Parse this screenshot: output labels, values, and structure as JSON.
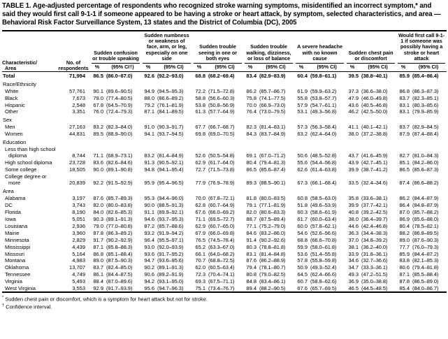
{
  "title": "TABLE 1. Age-adjusted percentage of respondents who recognized stroke warning symptoms, misidentified an incorrect symptom,* and said they would first call 9-1-1 if someone appeared to be having a stroke or heart attack, by symptom, selected characteristics, and area — Behavioral Risk Factor Surveillance System, 13 states and the District of Columbia (DC), 2005",
  "table": {
    "char_header_line1": "Characteristic/",
    "char_header_line2": "Area",
    "respondents_header": "No. of respondents",
    "groups": [
      {
        "title": "Sudden confusion or trouble speaking",
        "pct": "%",
        "ci": "(95% CI†)"
      },
      {
        "title": "Sudden numbness or weakness of face, arm, or leg, especially on one side",
        "pct": "%",
        "ci": "(95% CI)"
      },
      {
        "title": "Sudden trouble seeing in one or both eyes",
        "pct": "%",
        "ci": "(95% CI)"
      },
      {
        "title": "Sudden trouble walking, dizziness, or loss of balance",
        "pct": "%",
        "ci": "(95% CI)"
      },
      {
        "title": "A severe headache with no known cause",
        "pct": "%",
        "ci": "(95% CI)"
      },
      {
        "title": "Sudden chest pain or discomfort",
        "pct": "%",
        "ci": "(95% CI)"
      },
      {
        "title": "Would first call 9-1-1 if someone was possibly having a stroke or heart attack",
        "pct": "%",
        "ci": "(95% CI)"
      }
    ],
    "rows": [
      {
        "kind": "data",
        "label": "Total",
        "bold": true,
        "indent": false,
        "n": "71,994",
        "cells": [
          "86.5",
          "(86.0–87.0)",
          "92.6",
          "(92.2–93.0)",
          "68.8",
          "(68.2–69.4)",
          "83.4",
          "(82.9–83.9)",
          "60.4",
          "(59.8–61.1)",
          "39.5",
          "(38.8–40.1)",
          "85.9",
          "(85.4–86.4)"
        ]
      },
      {
        "kind": "section",
        "label": "Race/Ethnicity"
      },
      {
        "kind": "data",
        "label": "White",
        "indent": true,
        "n": "57,761",
        "cells": [
          "90.1",
          "(89.6–90.5)",
          "94.9",
          "(94.5–95.3)",
          "72.2",
          "(71.5–72.8)",
          "86.2",
          "(85.7–86.7)",
          "61.9",
          "(59.9–63.2)",
          "37.3",
          "(36.6–38.0)",
          "86.8",
          "(86.3–87.3)"
        ]
      },
      {
        "kind": "data",
        "label": "Black",
        "indent": true,
        "n": "7,673",
        "cells": [
          "79.0",
          "(77.4–80.5)",
          "88.0",
          "(86.6–89.2)",
          "58.8",
          "(56.6–60.3)",
          "75.8",
          "(74.1–77.5)",
          "55.8",
          "(53.8–57.7)",
          "47.9",
          "(46.0–49.8)",
          "83.7",
          "(82.3–85.1)"
        ]
      },
      {
        "kind": "data",
        "label": "Hispanic",
        "indent": true,
        "n": "2,548",
        "cells": [
          "67.8",
          "(64.5–70.9)",
          "79.2",
          "(76.1–81.9)",
          "53.8",
          "(50.8–56.9)",
          "70.0",
          "(66.9–73.0)",
          "57.9",
          "(54.7–61.1)",
          "43.6",
          "(40.5–46.8)",
          "83.1",
          "(80.3–85.6)"
        ]
      },
      {
        "kind": "data",
        "label": "Other",
        "indent": true,
        "n": "3,351",
        "cells": [
          "76.0",
          "(72.4–79.3)",
          "87.1",
          "(84.1–89.5)",
          "61.3",
          "(57.7–64.9)",
          "76.4",
          "(73.0–79.5)",
          "53.1",
          "(49.3–56.8)",
          "46.2",
          "(42.5–50.0)",
          "83.1",
          "(79.9–85.9)"
        ]
      },
      {
        "kind": "section",
        "label": "Sex"
      },
      {
        "kind": "data",
        "label": "Men",
        "indent": true,
        "n": "27,163",
        "cells": [
          "83.2",
          "(82.3–84.0)",
          "91.0",
          "(90.3–91.7)",
          "67.7",
          "(66.7–68.7)",
          "82.3",
          "(81.4–83.1)",
          "57.3",
          "(56.3–58.4)",
          "41.1",
          "(40.1–42.1)",
          "83.7",
          "(82.9–84.5)"
        ]
      },
      {
        "kind": "data",
        "label": "Women",
        "indent": true,
        "n": "44,831",
        "cells": [
          "89.5",
          "(88.9–90.0)",
          "94.1",
          "(93.7–94.5)",
          "69.8",
          "(69.0–70.5)",
          "84.3",
          "(83.7–84.9)",
          "63.2",
          "(62.4–64.0)",
          "38.0",
          "(37.2–38.8)",
          "87.9",
          "(87.4–88.4)"
        ]
      },
      {
        "kind": "section",
        "label": "Education"
      },
      {
        "kind": "data",
        "label": "Less than high school diploma",
        "indent": true,
        "n": "8,744",
        "cells": [
          "71.1",
          "(68.9–73.1)",
          "83.2",
          "(81.4–84.9)",
          "52.6",
          "(50.5–54.8)",
          "69.1",
          "(67.0–71.2)",
          "50.6",
          "(48.5–52.8)",
          "43.7",
          "(41.6–45.9)",
          "82.7",
          "(81.0–84.3)"
        ]
      },
      {
        "kind": "data",
        "label": "High school diploma",
        "indent": true,
        "n": "23,728",
        "cells": [
          "83.6",
          "(82.6–84.6)",
          "91.3",
          "(90.5–92.1)",
          "62.9",
          "(61.7–64.0)",
          "80.4",
          "(79.4–81.3)",
          "55.6",
          "(54.4–56.8)",
          "43.9",
          "(42.7–45.1)",
          "85.1",
          "(84.2–86.0)"
        ]
      },
      {
        "kind": "data",
        "label": "Some college",
        "indent": true,
        "n": "18,505",
        "cells": [
          "90.0",
          "(89.1–90.8)",
          "94.8",
          "(94.1–95.4)",
          "72.7",
          "(71.5–73.8)",
          "86.5",
          "(85.6–87.4)",
          "62.6",
          "(61.4–63.8)",
          "39.9",
          "(38.7–41.2)",
          "86.5",
          "(85.6–87.3)"
        ]
      },
      {
        "kind": "data",
        "label": "College degree or more",
        "indent": true,
        "n": "20,839",
        "cells": [
          "92.2",
          "(91.5–92.9)",
          "95.9",
          "(95.4–96.5)",
          "77.9",
          "(76.9–78.9)",
          "89.3",
          "(88.5–90.1)",
          "67.3",
          "(66.1–68.4)",
          "33.5",
          "(32.4–34.6)",
          "87.4",
          "(86.6–88.2)"
        ]
      },
      {
        "kind": "section",
        "label": "Area"
      },
      {
        "kind": "data",
        "label": "Alabama",
        "indent": true,
        "n": "3,197",
        "cells": [
          "87.6",
          "(85.7–89.3)",
          "95.3",
          "(94.4–96.0)",
          "70.0",
          "(67.8–72.1)",
          "81.8",
          "(80.0–83.5)",
          "60.8",
          "(58.5–63.0)",
          "35.8",
          "(33.6–38.1)",
          "86.2",
          "(84.4–87.9)"
        ]
      },
      {
        "kind": "data",
        "label": "DC",
        "indent": true,
        "n": "3,743",
        "cells": [
          "82.0",
          "(80.0–83.8)",
          "90.0",
          "(88.5–91.3)",
          "62.8",
          "(60.7–64.9)",
          "79.1",
          "(77.1–81.9)",
          "51.8",
          "(49.6–53.9)",
          "39.9",
          "(37.7–42.1)",
          "86.4",
          "(84.8–87.9)"
        ]
      },
      {
        "kind": "data",
        "label": "Florida",
        "indent": true,
        "n": "8,190",
        "cells": [
          "84.0",
          "(82.6–85.3)",
          "91.1",
          "(89.9–92.1)",
          "67.6",
          "(66.0–69.2)",
          "82.0",
          "(80.6–83.3)",
          "60.3",
          "(58.6–61.9)",
          "40.8",
          "(39.2–42.5)",
          "87.0",
          "(85.7–88.2)"
        ]
      },
      {
        "kind": "data",
        "label": "Iowa",
        "indent": true,
        "n": "5,051",
        "cells": [
          "90.3",
          "(89.1–91.3)",
          "94.6",
          "(93.7–95.3)",
          "71.1",
          "(69.5–72.7)",
          "88.7",
          "(87.5–89.4)",
          "61.7",
          "(60.0–63.4)",
          "38.0",
          "(36.4–39.7)",
          "86.9",
          "(85.6–88.0)"
        ]
      },
      {
        "kind": "data",
        "label": "Louisiana",
        "indent": true,
        "n": "2,936",
        "cells": [
          "79.0",
          "(77.0–80.8)",
          "87.2",
          "(85.7–88.6)",
          "62.9",
          "(60.7–65.0)",
          "77.1",
          "(75.2–79.0)",
          "60.0",
          "(57.8–62.1)",
          "44.6",
          "(42.4–46.8)",
          "80.4",
          "(78.5–82.1)"
        ]
      },
      {
        "kind": "data",
        "label": "Maine",
        "indent": true,
        "n": "3,960",
        "cells": [
          "87.8",
          "(86.3–89.2)",
          "93.2",
          "(91.9–94.2)",
          "67.9",
          "(66.0–69.8)",
          "84.6",
          "(83.2–86.0)",
          "54.6",
          "(52.6–56.6)",
          "36.3",
          "(34.4–38.3)",
          "88.2",
          "(86.8–89.5)"
        ]
      },
      {
        "kind": "data",
        "label": "Minnesota",
        "indent": true,
        "n": "2,829",
        "cells": [
          "91.7",
          "(90.2–92.9)",
          "96.4",
          "(95.5–97.1)",
          "76.5",
          "(74.5–78.4)",
          "91.4",
          "(90.2–92.6)",
          "68.8",
          "(66.6–70.8)",
          "37.0",
          "(34.8–39.2)",
          "89.0",
          "(87.6–90.3)"
        ]
      },
      {
        "kind": "data",
        "label": "Mississippi",
        "indent": true,
        "n": "4,439",
        "cells": [
          "87.1",
          "(85.8–88.3)",
          "93.0",
          "(92.0–93.9)",
          "65.2",
          "(63.3–67.0)",
          "80.3",
          "(78.8–81.8)",
          "59.9",
          "(58.0–61.8)",
          "38.1",
          "(36.2–40.0)",
          "77.7",
          "(76.0–79.3)"
        ]
      },
      {
        "kind": "data",
        "label": "Missouri",
        "indent": true,
        "n": "5,164",
        "cells": [
          "86.8",
          "(85.1–88.4)",
          "93.6",
          "(91.7–95.2)",
          "66.1",
          "(64.0–68.2)",
          "83.1",
          "(81.4–84.8)",
          "53.6",
          "(51.4–55.8)",
          "33.9",
          "(31.8–36.1)",
          "85.9",
          "(84.4–87.2)"
        ]
      },
      {
        "kind": "data",
        "label": "Montana",
        "indent": true,
        "n": "4,983",
        "cells": [
          "89.0",
          "(87.5–90.3)",
          "94.7",
          "(93.6–95.6)",
          "70.7",
          "(68.8–72.5)",
          "87.6",
          "(86.2–88.9)",
          "57.8",
          "(55.8–59.8)",
          "34.6",
          "(32.7–36.6)",
          "83.8",
          "(82.1–85.3)"
        ]
      },
      {
        "kind": "data",
        "label": "Oklahoma",
        "indent": true,
        "n": "13,707",
        "cells": [
          "83.7",
          "(82.4–85.0)",
          "90.2",
          "(89.1–91.3)",
          "62.0",
          "(60.5–63.4)",
          "79.4",
          "(78.1–80.7)",
          "50.9",
          "(49.3–52.4)",
          "34.7",
          "(33.3–36.1)",
          "80.6",
          "(79.4–81.8)"
        ]
      },
      {
        "kind": "data",
        "label": "Tennessee",
        "indent": true,
        "n": "4,749",
        "cells": [
          "86.1",
          "(84.4–87.5)",
          "90.6",
          "(89.2–91.9)",
          "72.3",
          "(70.4–74.1)",
          "80.8",
          "(79.0–82.5)",
          "64.5",
          "(62.4–66.6)",
          "49.3",
          "(47.2–51.5)",
          "87.1",
          "(85.5–88.4)"
        ]
      },
      {
        "kind": "data",
        "label": "Virginia",
        "indent": true,
        "n": "5,493",
        "cells": [
          "88.4",
          "(87.0–89.6)",
          "94.2",
          "(93.1–95.0)",
          "69.3",
          "(67.5–71.1)",
          "84.8",
          "(83.4–86.1)",
          "60.7",
          "(58.8–62.6)",
          "36.9",
          "(35.0–38.8)",
          "87.8",
          "(86.5–89.0)"
        ]
      },
      {
        "kind": "data",
        "label": "West Virginia",
        "indent": true,
        "n": "3,553",
        "cells": [
          "92.9",
          "(91.7–93.9)",
          "95.6",
          "(94.7–96.3)",
          "75.1",
          "(73.4–76.7)",
          "89.4",
          "(88.2–90.5)",
          "67.6",
          "(65.7–69.5)",
          "46.5",
          "(44.5–48.5)",
          "85.4",
          "(84.0–86.7)"
        ]
      }
    ]
  },
  "footnotes": [
    {
      "marker": "*",
      "text": "Sudden chest pain or discomfort, which is a symptom for heart attack but not for stroke."
    },
    {
      "marker": "†",
      "text": "Confidence interval."
    }
  ]
}
